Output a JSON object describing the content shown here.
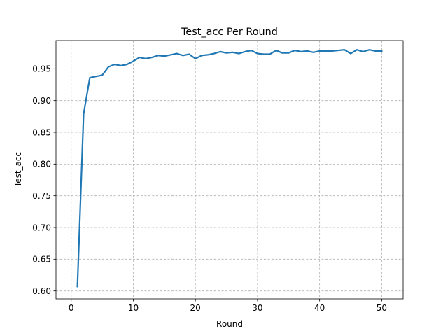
{
  "chart_data": {
    "type": "line",
    "title": "Test_acc Per Round",
    "xlabel": "Round",
    "ylabel": "Test_acc",
    "xlim": [
      -2.45,
      53.45
    ],
    "ylim": [
      0.5875,
      0.9945
    ],
    "xticks": [
      0,
      10,
      20,
      30,
      40,
      50
    ],
    "xtick_labels": [
      "0",
      "10",
      "20",
      "30",
      "40",
      "50"
    ],
    "yticks": [
      0.6,
      0.65,
      0.7,
      0.75,
      0.8,
      0.85,
      0.9,
      0.95
    ],
    "ytick_labels": [
      "0.60",
      "0.65",
      "0.70",
      "0.75",
      "0.80",
      "0.85",
      "0.90",
      "0.95"
    ],
    "grid": true,
    "grid_style": "dashed",
    "line_color": "#1f77b4",
    "series": [
      {
        "x": [
          1,
          2,
          3,
          4,
          5,
          6,
          7,
          8,
          9,
          10,
          11,
          12,
          13,
          14,
          15,
          16,
          17,
          18,
          19,
          20,
          21,
          22,
          23,
          24,
          25,
          26,
          27,
          28,
          29,
          30,
          31,
          32,
          33,
          34,
          35,
          36,
          37,
          38,
          39,
          40,
          41,
          42,
          43,
          44,
          45,
          46,
          47,
          48,
          49,
          50
        ],
        "values": [
          0.607,
          0.879,
          0.936,
          0.938,
          0.94,
          0.953,
          0.957,
          0.955,
          0.957,
          0.962,
          0.968,
          0.966,
          0.968,
          0.971,
          0.97,
          0.972,
          0.974,
          0.971,
          0.973,
          0.966,
          0.971,
          0.972,
          0.974,
          0.977,
          0.975,
          0.976,
          0.974,
          0.977,
          0.979,
          0.974,
          0.973,
          0.973,
          0.979,
          0.975,
          0.975,
          0.979,
          0.977,
          0.978,
          0.976,
          0.978,
          0.978,
          0.978,
          0.979,
          0.98,
          0.974,
          0.98,
          0.977,
          0.98,
          0.978,
          0.978
        ]
      }
    ]
  }
}
